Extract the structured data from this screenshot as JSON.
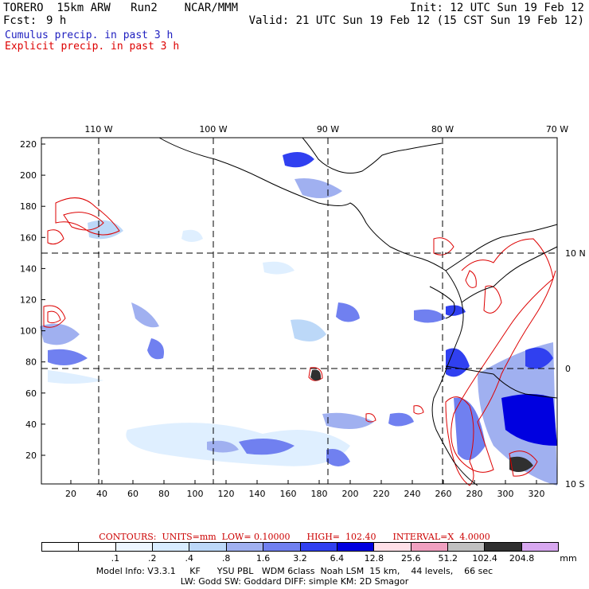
{
  "header": {
    "title_left": "TORERO  15km ARW   Run2    NCAR/MMM",
    "init": "Init: 12 UTC Sun 19 Feb 12",
    "fcst_label": "Fcst:",
    "fcst_value": "9 h",
    "valid": "Valid: 21 UTC Sun 19 Feb 12 (15 CST Sun 19 Feb 12)"
  },
  "legend": {
    "cumulus": "Cumulus precip. in past 3 h",
    "explicit": "Explicit precip. in past 3 h",
    "cumulus_color": "#2020c0",
    "explicit_color": "#dd0000"
  },
  "top_axis": [
    "110 W",
    "100 W",
    "90 W",
    "80 W",
    "70 W"
  ],
  "right_axis": [
    "10 N",
    "0",
    "10 S"
  ],
  "y_axis": [
    "20",
    "40",
    "60",
    "80",
    "100",
    "120",
    "140",
    "160",
    "180",
    "200",
    "220"
  ],
  "x_axis": [
    "20",
    "40",
    "60",
    "80",
    "100",
    "120",
    "140",
    "160",
    "180",
    "200",
    "220",
    "240",
    "260",
    "280",
    "300",
    "320"
  ],
  "contours": {
    "label": "CONTOURS:  UNITS=mm  LOW= 0.10000      HIGH=  102.40      INTERVAL=X  4.0000"
  },
  "colorbar": {
    "colors": [
      "#ffffff",
      "#ffffff",
      "#eef6ff",
      "#d8ecff",
      "#bcd8f8",
      "#a0b0f0",
      "#7080f0",
      "#3040f0",
      "#0000e0",
      "#ffe0e8",
      "#f0a0c0",
      "#c0c0c0",
      "#303030",
      "#d8a8f0"
    ],
    "labels": [
      ".1",
      ".2",
      ".4",
      ".8",
      "1.6",
      "3.2",
      "6.4",
      "12.8",
      "25.6",
      "51.2",
      "102.4",
      "204.8"
    ],
    "units": "mm"
  },
  "model_info": {
    "line1": "Model Info: V3.3.1     KF      YSU PBL   WDM 6class  Noah LSM  15 km,    44 levels,    66 sec",
    "line2": "LW: Godd SW: Goddard DIFF: simple KM: 2D Smagor"
  }
}
